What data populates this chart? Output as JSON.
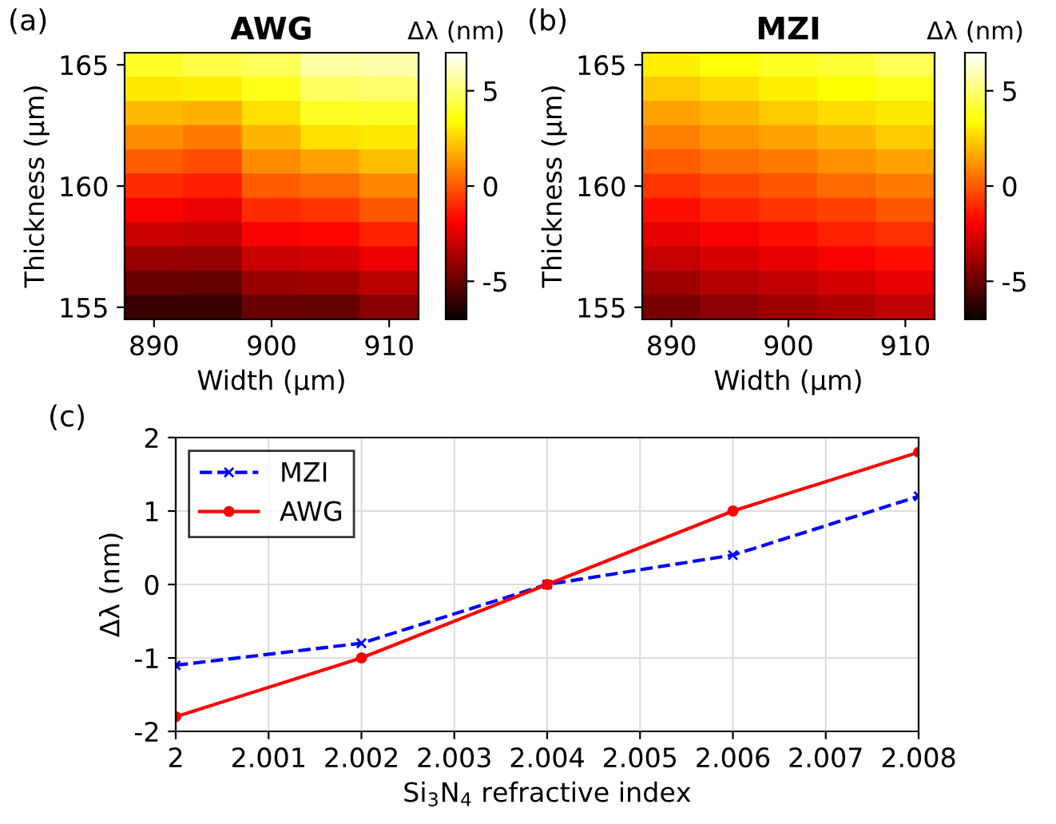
{
  "chart_data": [
    {
      "type": "heatmap",
      "title": "AWG",
      "xlabel": "Width (μm)",
      "ylabel": "Thickness (μm)",
      "clabel": "Δλ (nm)",
      "annotations": [
        "(a)"
      ],
      "categories": [
        "890",
        null,
        "900",
        null,
        "910"
      ],
      "y_categories": [
        "165",
        null,
        null,
        null,
        null,
        "160",
        null,
        null,
        null,
        null,
        "155"
      ],
      "cells": [
        [
          4,
          4.4,
          4.7,
          5.7,
          5.8
        ],
        [
          3,
          3.1,
          3.8,
          4.8,
          4.9
        ],
        [
          2,
          1.8,
          2.8,
          3.9,
          4.0
        ],
        [
          1,
          0.7,
          1.9,
          2.8,
          3.0
        ],
        [
          0,
          -0.3,
          1.0,
          1.5,
          2.1
        ],
        [
          -1,
          -1.3,
          0.0,
          0.3,
          0.9
        ],
        [
          -2,
          -2.3,
          -1.0,
          -0.8,
          -0.1
        ],
        [
          -3,
          -3.2,
          -2.0,
          -1.8,
          -1.2
        ],
        [
          -4,
          -4.1,
          -3.0,
          -2.8,
          -2.2
        ],
        [
          -5,
          -5.1,
          -4.0,
          -3.9,
          -3.3
        ],
        [
          -6,
          -6.0,
          -5.0,
          -5.1,
          -4.4
        ]
      ],
      "clim": [
        -7,
        7
      ],
      "cticks": [
        -5,
        0,
        5
      ]
    },
    {
      "type": "heatmap",
      "title": "MZI",
      "xlabel": "Width (μm)",
      "ylabel": "Thickness (μm)",
      "clabel": "Δλ (nm)",
      "annotations": [
        "(b)"
      ],
      "categories": [
        "890",
        null,
        "900",
        null,
        "910"
      ],
      "y_categories": [
        "165",
        null,
        null,
        null,
        null,
        "160",
        null,
        null,
        null,
        null,
        "155"
      ],
      "cells": [
        [
          3.1,
          3.5,
          3.9,
          4.2,
          4.6
        ],
        [
          2.3,
          2.7,
          3.1,
          3.4,
          3.8
        ],
        [
          1.5,
          1.9,
          2.3,
          2.7,
          3.0
        ],
        [
          0.8,
          1.2,
          1.5,
          1.9,
          2.3
        ],
        [
          0.0,
          0.4,
          0.7,
          1.1,
          1.5
        ],
        [
          -0.8,
          -0.4,
          -0.1,
          0.3,
          0.7
        ],
        [
          -1.6,
          -1.2,
          -0.8,
          -0.5,
          -0.1
        ],
        [
          -2.4,
          -2.0,
          -1.6,
          -1.2,
          -0.9
        ],
        [
          -3.1,
          -2.7,
          -2.4,
          -2.0,
          -1.6
        ],
        [
          -3.9,
          -3.5,
          -3.2,
          -2.8,
          -2.4
        ],
        [
          -4.7,
          -4.3,
          -3.9,
          -3.6,
          -3.2
        ]
      ],
      "clim": [
        -7,
        7
      ],
      "cticks": [
        -5,
        0,
        5
      ]
    },
    {
      "type": "line",
      "xlabel": "Si$_{3}$N$_{4}$ refractive index",
      "ylabel": "Δλ (nm)",
      "annotations": [
        "(c)"
      ],
      "x": [
        2,
        2.002,
        2.004,
        2.006,
        2.008
      ],
      "series": [
        {
          "name": "MZI",
          "color": "#0000ff",
          "values": [
            -1.1,
            -0.8,
            0,
            0.4,
            1.2
          ],
          "marker": "cross",
          "line_style": "dashed"
        },
        {
          "name": "AWG",
          "color": "#ff0000",
          "values": [
            -1.8,
            -1.0,
            0,
            1.0,
            1.8
          ],
          "marker": "circle",
          "line_style": "solid"
        }
      ],
      "xlim": [
        2,
        2.008
      ],
      "xticks": [
        2,
        2.001,
        2.002,
        2.003,
        2.004,
        2.005,
        2.006,
        2.007,
        2.008
      ],
      "ylim": [
        -2,
        2
      ],
      "yticks": [
        -2,
        -1,
        0,
        1,
        2
      ],
      "grid": true,
      "legend": "top left"
    }
  ]
}
